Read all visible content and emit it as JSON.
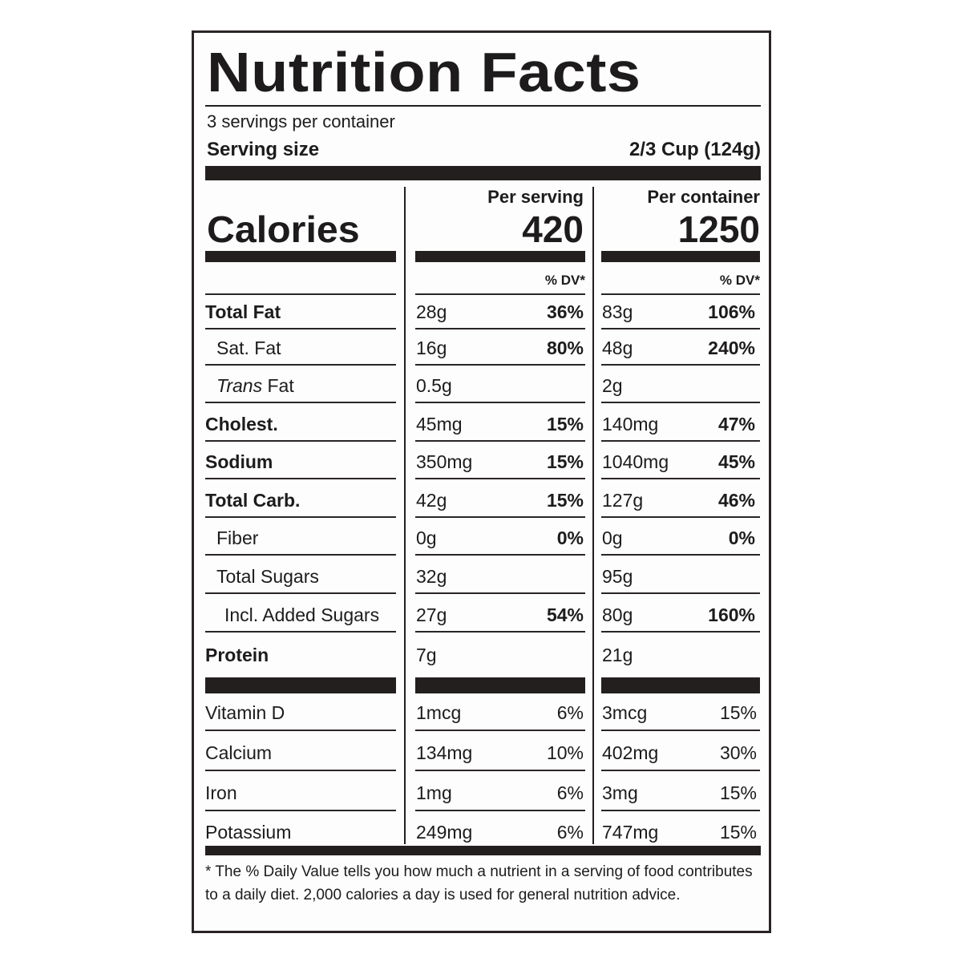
{
  "title": "Nutrition Facts",
  "servings_per_container": "3 servings per container",
  "serving_size_label": "Serving size",
  "serving_size_value": "2/3 Cup (124g)",
  "calories_label": "Calories",
  "per_serving_label": "Per serving",
  "per_container_label": "Per container",
  "calories_per_serving": "420",
  "calories_per_container": "1250",
  "dv_header": "% DV*",
  "nutrients": [
    {
      "label": "Total Fat",
      "bold": true,
      "indent": 0,
      "serving_amount": "28g",
      "serving_dv": "36%",
      "container_amount": "83g",
      "container_dv": "106%"
    },
    {
      "label": "Sat. Fat",
      "bold": false,
      "indent": 1,
      "serving_amount": "16g",
      "serving_dv": "80%",
      "container_amount": "48g",
      "container_dv": "240%"
    },
    {
      "label_italic": "Trans",
      "label": " Fat",
      "bold": false,
      "indent": 1,
      "serving_amount": "0.5g",
      "serving_dv": "",
      "container_amount": "2g",
      "container_dv": ""
    },
    {
      "label": "Cholest.",
      "bold": true,
      "indent": 0,
      "serving_amount": "45mg",
      "serving_dv": "15%",
      "container_amount": "140mg",
      "container_dv": "47%"
    },
    {
      "label": "Sodium",
      "bold": true,
      "indent": 0,
      "serving_amount": "350mg",
      "serving_dv": "15%",
      "container_amount": "1040mg",
      "container_dv": "45%"
    },
    {
      "label": "Total Carb.",
      "bold": true,
      "indent": 0,
      "serving_amount": "42g",
      "serving_dv": "15%",
      "container_amount": "127g",
      "container_dv": "46%"
    },
    {
      "label": "Fiber",
      "bold": false,
      "indent": 1,
      "serving_amount": "0g",
      "serving_dv": "0%",
      "container_amount": "0g",
      "container_dv": "0%"
    },
    {
      "label": "Total Sugars",
      "bold": false,
      "indent": 1,
      "serving_amount": "32g",
      "serving_dv": "",
      "container_amount": "95g",
      "container_dv": ""
    },
    {
      "label": "Incl. Added Sugars",
      "bold": false,
      "indent": 2,
      "serving_amount": "27g",
      "serving_dv": "54%",
      "container_amount": "80g",
      "container_dv": "160%"
    },
    {
      "label": "Protein",
      "bold": true,
      "indent": 0,
      "serving_amount": "7g",
      "serving_dv": "",
      "container_amount": "21g",
      "container_dv": ""
    }
  ],
  "vitamins": [
    {
      "label": "Vitamin D",
      "serving_amount": "1mcg",
      "serving_dv": "6%",
      "container_amount": "3mcg",
      "container_dv": "15%"
    },
    {
      "label": "Calcium",
      "serving_amount": "134mg",
      "serving_dv": "10%",
      "container_amount": "402mg",
      "container_dv": "30%"
    },
    {
      "label": "Iron",
      "serving_amount": "1mg",
      "serving_dv": "6%",
      "container_amount": "3mg",
      "container_dv": "15%"
    },
    {
      "label": "Potassium",
      "serving_amount": "249mg",
      "serving_dv": "6%",
      "container_amount": "747mg",
      "container_dv": "15%"
    }
  ],
  "footnote": "* The % Daily Value tells you how much a nutrient in a serving of food contributes to a daily diet. 2,000 calories a day is used for general nutrition advice."
}
